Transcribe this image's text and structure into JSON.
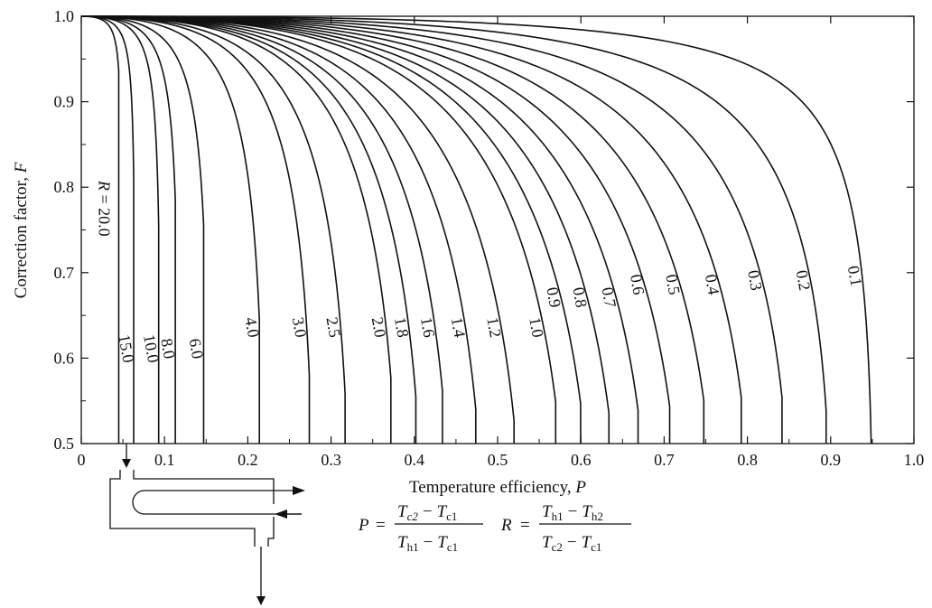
{
  "chart_data": {
    "type": "line",
    "xlabel_text": "Temperature efficiency, ",
    "xlabel_var": "P",
    "ylabel_text": "Correction factor, ",
    "ylabel_var": "F",
    "xlim": [
      0,
      1.0
    ],
    "ylim": [
      0.5,
      1.0
    ],
    "x_ticks": [
      0,
      0.1,
      0.2,
      0.3,
      0.4,
      0.5,
      0.6,
      0.7,
      0.8,
      0.9,
      1.0
    ],
    "x_tick_labels": [
      "0",
      "0.1",
      "0.2",
      "0.3",
      "0.4",
      "0.5",
      "0.6",
      "0.7",
      "0.8",
      "0.9",
      "1.0"
    ],
    "y_ticks": [
      0.5,
      0.6,
      0.7,
      0.8,
      0.9,
      1.0
    ],
    "y_tick_labels": [
      "0.5",
      "0.6",
      "0.7",
      "0.8",
      "0.9",
      "1.0"
    ],
    "r_label_prefix": "R = ",
    "series": [
      {
        "name": "20.0",
        "pmax": 0.045
      },
      {
        "name": "15.0",
        "pmax": 0.063
      },
      {
        "name": "10.0",
        "pmax": 0.093
      },
      {
        "name": "8.0",
        "pmax": 0.113
      },
      {
        "name": "6.0",
        "pmax": 0.147
      },
      {
        "name": "4.0",
        "pmax": 0.214
      },
      {
        "name": "3.0",
        "pmax": 0.274
      },
      {
        "name": "2.5",
        "pmax": 0.317
      },
      {
        "name": "2.0",
        "pmax": 0.372
      },
      {
        "name": "1.8",
        "pmax": 0.402
      },
      {
        "name": "1.6",
        "pmax": 0.434
      },
      {
        "name": "1.4",
        "pmax": 0.474
      },
      {
        "name": "1.2",
        "pmax": 0.52
      },
      {
        "name": "1.0",
        "pmax": 0.57
      },
      {
        "name": "0.9",
        "pmax": 0.6
      },
      {
        "name": "0.8",
        "pmax": 0.634
      },
      {
        "name": "0.7",
        "pmax": 0.669
      },
      {
        "name": "0.6",
        "pmax": 0.707
      },
      {
        "name": "0.5",
        "pmax": 0.748
      },
      {
        "name": "0.4",
        "pmax": 0.793
      },
      {
        "name": "0.3",
        "pmax": 0.842
      },
      {
        "name": "0.2",
        "pmax": 0.895
      },
      {
        "name": "0.1",
        "pmax": 0.95
      }
    ]
  },
  "formula": {
    "p_lhs": "P",
    "eq": "=",
    "p_num_a": "T",
    "p_num_a_sub": "c2",
    "p_num_minus": "−",
    "p_num_b": "T",
    "p_num_b_sub": "c1",
    "p_den_a": "T",
    "p_den_a_sub": "h1",
    "p_den_minus": "−",
    "p_den_b": "T",
    "p_den_b_sub": "c1",
    "r_lhs": "R",
    "r_num_a": "T",
    "r_num_a_sub": "h1",
    "r_num_minus": "−",
    "r_num_b": "T",
    "r_num_b_sub": "h2",
    "r_den_a": "T",
    "r_den_a_sub": "c2",
    "r_den_minus": "−",
    "r_den_b": "T",
    "r_den_b_sub": "c1"
  },
  "colors": {
    "line": "#111111"
  }
}
